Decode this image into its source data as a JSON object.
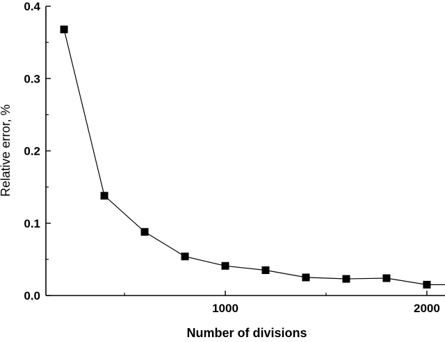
{
  "chart_data": {
    "type": "line",
    "title": "",
    "xlabel": "Number of divisions",
    "ylabel": "Relative error, %",
    "xlim": [
      110,
      2090
    ],
    "ylim": [
      0,
      0.4
    ],
    "x_ticks": [
      1000,
      2000
    ],
    "y_ticks": [
      0.0,
      0.1,
      0.2,
      0.3,
      0.4
    ],
    "x_tick_labels": [
      "1000",
      "2000"
    ],
    "y_tick_labels": [
      "0.0",
      "0.1",
      "0.2",
      "0.3",
      "0.4"
    ],
    "grid": false,
    "marker": "square",
    "color": "#000000",
    "series": [
      {
        "x": [
          200,
          400,
          600,
          800,
          1000,
          1200,
          1400,
          1600,
          1800,
          2000
        ],
        "y": [
          0.368,
          0.138,
          0.088,
          0.054,
          0.041,
          0.035,
          0.025,
          0.023,
          0.024,
          0.015
        ]
      }
    ],
    "line_extends_to_x": 2090,
    "line_end_y": 0.015
  }
}
